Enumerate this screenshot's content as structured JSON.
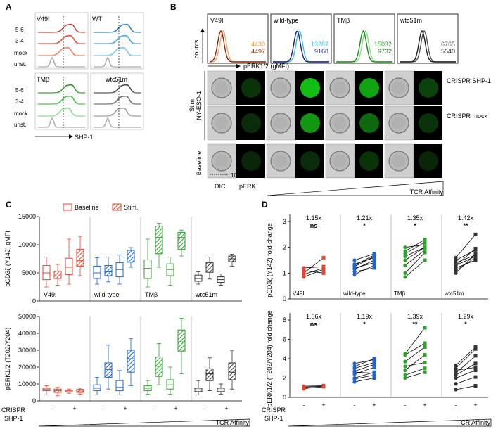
{
  "panel_labels": {
    "A": "A",
    "B": "B",
    "C": "C",
    "D": "D"
  },
  "colors": {
    "v49i": "#e8452c",
    "wt": "#1f63d4",
    "tmb": "#2aa52a",
    "wtc51m": "#333333",
    "wt_light": "#36c0e8",
    "tmb_light": "#7fe07f",
    "v49i_light": "#f6a26b"
  },
  "panelA": {
    "row_labels": [
      "5-6",
      "3-4",
      "mock",
      "unst."
    ],
    "constructs": [
      "V49I",
      "WT",
      "TMβ",
      "wtc51m"
    ],
    "axis_label": "SHP-1"
  },
  "panelB": {
    "constructs": [
      "V49I",
      "wild-type",
      "TMβ",
      "wtc51m"
    ],
    "y_label": "counts",
    "x_label": "pERK1/2 (gMFI)",
    "gmfi": [
      {
        "top": "4430",
        "bottom": "4497"
      },
      {
        "top": "13287",
        "bottom": "9168"
      },
      {
        "top": "15032",
        "bottom": "9732"
      },
      {
        "top": "6765",
        "bottom": "5540"
      }
    ],
    "row_labels_right": [
      "CRISPR\nSHP-1",
      "CRISPR\nmock"
    ],
    "crispr_shp1": "CRISPR SHP-1",
    "crispr_mock": "CRISPR mock",
    "stim_label": "Stim\nNY-ESO-1",
    "stim": "Stim",
    "nyeso": "NY-ESO-1",
    "baseline_label": "Baseline",
    "col_labels": [
      "DIC",
      "pERK"
    ],
    "scale_bar": "10um",
    "affinity": "TCR Affinity"
  },
  "panelC": {
    "legend": [
      "Baseline",
      "Stim."
    ],
    "crispr_label": "CRISPR",
    "shp1_label": "SHP-1",
    "xtick_labels": [
      "-",
      "-",
      "+",
      "+"
    ],
    "affinity": "TCR Affinity"
  },
  "panelD": {
    "crispr_label": "CRISPR",
    "shp1_label": "SHP-1",
    "xtick_labels": [
      "-",
      "+"
    ],
    "affinity": "TCR Affinity"
  },
  "chart_data": [
    {
      "id": "C-top",
      "type": "box",
      "title": "",
      "ylabel": "pCD3ζ (Y142) gMFI",
      "ylim": [
        0,
        15000
      ],
      "yticks": [
        0,
        5000,
        10000,
        15000
      ],
      "groups": [
        "V49I",
        "wild-type",
        "TMβ",
        "wtc51m"
      ],
      "categories": [
        "- Baseline",
        "- Stim.",
        "+ Baseline",
        "+ Stim."
      ],
      "boxes": [
        [
          [
            2500,
            3800,
            5000,
            6300,
            7800
          ],
          [
            2800,
            4000,
            4800,
            5300,
            6500
          ],
          [
            3000,
            4700,
            6000,
            7600,
            11000
          ],
          [
            4500,
            6200,
            7200,
            9200,
            11500
          ]
        ],
        [
          [
            3000,
            4000,
            5000,
            6200,
            7700
          ],
          [
            3400,
            4500,
            5200,
            6300,
            7800
          ],
          [
            3000,
            4300,
            5600,
            6800,
            8200
          ],
          [
            6000,
            6900,
            7800,
            9000,
            9500
          ]
        ],
        [
          [
            2500,
            4000,
            5800,
            7300,
            11000
          ],
          [
            6000,
            8400,
            11300,
            13300,
            13800
          ],
          [
            2800,
            4500,
            5600,
            6600,
            7800
          ],
          [
            8000,
            9200,
            11300,
            12200,
            12600
          ]
        ],
        [
          [
            3000,
            3500,
            4000,
            4600,
            5200
          ],
          [
            3900,
            5100,
            5700,
            6800,
            7800
          ],
          [
            2800,
            3300,
            3800,
            4300,
            4800
          ],
          [
            6200,
            7000,
            7500,
            8000,
            8300
          ]
        ]
      ]
    },
    {
      "id": "C-bottom",
      "type": "box",
      "title": "",
      "ylabel": "pERK1/2 (T202/Y204)",
      "ylim": [
        0,
        50000
      ],
      "yticks": [
        0,
        10000,
        20000,
        30000,
        40000,
        50000
      ],
      "groups": [
        "V49I",
        "wild-type",
        "TMβ",
        "wtc51m"
      ],
      "categories": [
        "- Baseline",
        "- Stim.",
        "+ Baseline",
        "+ Stim."
      ],
      "boxes": [
        [
          [
            3500,
            6000,
            7000,
            7600,
            9000
          ],
          [
            3000,
            5000,
            6000,
            7000,
            8000
          ],
          [
            4500,
            5200,
            5800,
            6300,
            7000
          ],
          [
            4000,
            5000,
            5800,
            6800,
            7500
          ]
        ],
        [
          [
            3500,
            6000,
            7500,
            9500,
            14000
          ],
          [
            7000,
            14000,
            18500,
            22500,
            33000
          ],
          [
            3500,
            6000,
            8000,
            12000,
            18000
          ],
          [
            9000,
            17000,
            25000,
            30000,
            37000
          ]
        ],
        [
          [
            4000,
            6000,
            7500,
            9000,
            12000
          ],
          [
            9500,
            14500,
            20500,
            26000,
            34000
          ],
          [
            4000,
            7000,
            9500,
            12500,
            20000
          ],
          [
            16000,
            29500,
            35000,
            42000,
            49000
          ]
        ],
        [
          [
            3500,
            5500,
            6500,
            7500,
            12000
          ],
          [
            6000,
            12000,
            16000,
            19000,
            25500
          ],
          [
            4000,
            5500,
            6500,
            7500,
            10000
          ],
          [
            7000,
            12500,
            17000,
            22500,
            30000
          ]
        ]
      ]
    },
    {
      "id": "D-top",
      "type": "paired-scatter",
      "ylabel": "pCD3ζ (Y142) fold change",
      "ylim": [
        0,
        3
      ],
      "yticks": [
        0,
        1,
        2,
        3
      ],
      "groups": [
        "V49I",
        "wild-type",
        "TMβ",
        "wtc51m"
      ],
      "categories": [
        "-",
        "+"
      ],
      "fold": [
        "1.15x",
        "1.21x",
        "1.35x",
        "1.42x"
      ],
      "sig": [
        "ns",
        "*",
        "*",
        "**"
      ],
      "pairs": [
        [
          [
            0.85,
            1.15
          ],
          [
            1.0,
            1.6
          ],
          [
            1.1,
            1.0
          ],
          [
            1.2,
            1.25
          ],
          [
            0.95,
            1.2
          ]
        ],
        [
          [
            0.95,
            1.3
          ],
          [
            1.2,
            1.4
          ],
          [
            1.35,
            1.6
          ],
          [
            1.15,
            1.5
          ],
          [
            1.3,
            1.7
          ],
          [
            1.05,
            1.2
          ],
          [
            1.5,
            1.75
          ],
          [
            1.25,
            1.65
          ]
        ],
        [
          [
            0.85,
            1.5
          ],
          [
            1.0,
            1.8
          ],
          [
            1.3,
            1.9
          ],
          [
            1.65,
            2.0
          ],
          [
            1.75,
            2.2
          ],
          [
            1.85,
            2.3
          ],
          [
            2.0,
            2.1
          ],
          [
            1.5,
            2.0
          ]
        ],
        [
          [
            1.0,
            1.75
          ],
          [
            1.2,
            1.5
          ],
          [
            1.3,
            1.65
          ],
          [
            1.4,
            1.7
          ],
          [
            1.5,
            1.9
          ],
          [
            1.6,
            2.5
          ],
          [
            1.3,
            1.95
          ],
          [
            1.1,
            1.6
          ]
        ]
      ]
    },
    {
      "id": "D-bottom",
      "type": "paired-scatter",
      "ylabel": "pERK1/2 (T202/Y204) fold change",
      "ylim": [
        0,
        8
      ],
      "yticks": [
        0,
        2,
        4,
        6,
        8
      ],
      "groups": [
        "V49I",
        "wild-type",
        "TMβ",
        "wtc51m"
      ],
      "categories": [
        "-",
        "+"
      ],
      "fold": [
        "1.06x",
        "1.19x",
        "1.39x",
        "1.29x"
      ],
      "sig": [
        "ns",
        "*",
        "**",
        "*"
      ],
      "pairs": [
        [
          [
            0.9,
            1.1
          ],
          [
            1.05,
            1.15
          ],
          [
            1.15,
            1.2
          ]
        ],
        [
          [
            1.6,
            2.0
          ],
          [
            2.0,
            2.6
          ],
          [
            2.4,
            3.1
          ],
          [
            2.7,
            3.4
          ],
          [
            3.0,
            3.6
          ],
          [
            3.2,
            4.0
          ],
          [
            2.6,
            2.5
          ],
          [
            1.9,
            2.3
          ],
          [
            3.5,
            3.9
          ]
        ],
        [
          [
            2.3,
            3.0
          ],
          [
            2.8,
            4.4
          ],
          [
            3.7,
            5.2
          ],
          [
            4.4,
            5.6
          ],
          [
            4.5,
            7.2
          ],
          [
            3.2,
            3.6
          ],
          [
            2.0,
            2.6
          ]
        ],
        [
          [
            0.8,
            1.2
          ],
          [
            1.4,
            2.1
          ],
          [
            2.0,
            2.8
          ],
          [
            2.3,
            3.5
          ],
          [
            2.5,
            4.3
          ],
          [
            3.0,
            5.0
          ],
          [
            3.3,
            5.2
          ],
          [
            2.8,
            3.1
          ]
        ]
      ]
    }
  ]
}
